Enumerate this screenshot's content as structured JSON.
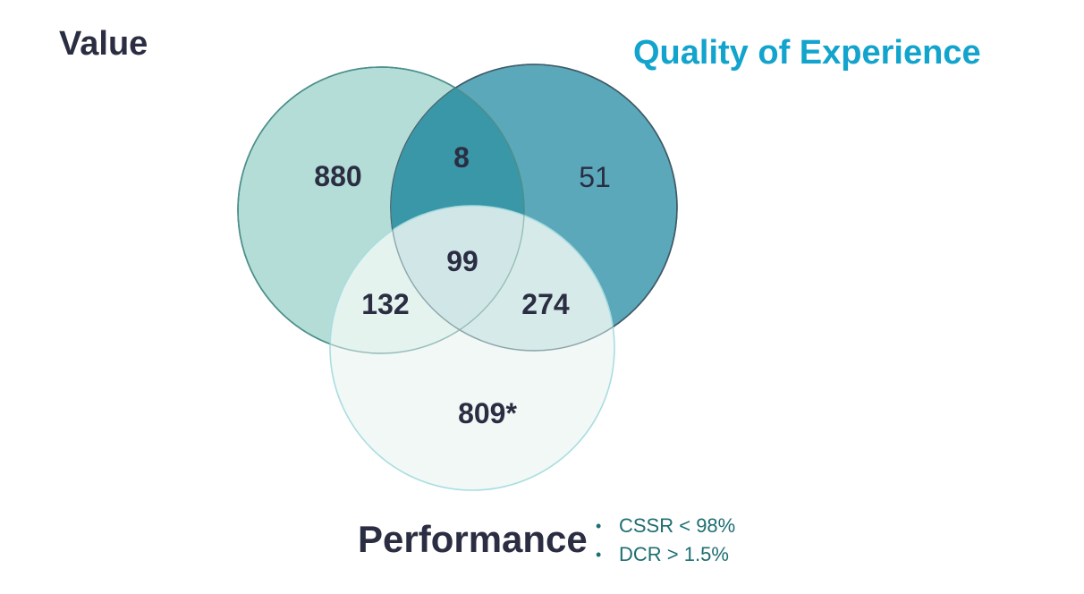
{
  "sets": {
    "value": {
      "label": "Value",
      "color": "#2b2d42",
      "fill": "#b3ddd6"
    },
    "qoe": {
      "label": "Quality of Experience",
      "color": "#12a4cc",
      "fill": "#5ba8bb"
    },
    "performance": {
      "label": "Performance",
      "color": "#2b2d42",
      "fill": "#eef7f3"
    }
  },
  "regions": {
    "value_only": "880",
    "value_qoe": "8",
    "qoe_only": "51",
    "all_three": "99",
    "value_perf": "132",
    "qoe_perf": "274",
    "perf_only": "809*"
  },
  "performance_criteria": [
    "CSSR < 98%",
    "DCR >  1.5%"
  ]
}
